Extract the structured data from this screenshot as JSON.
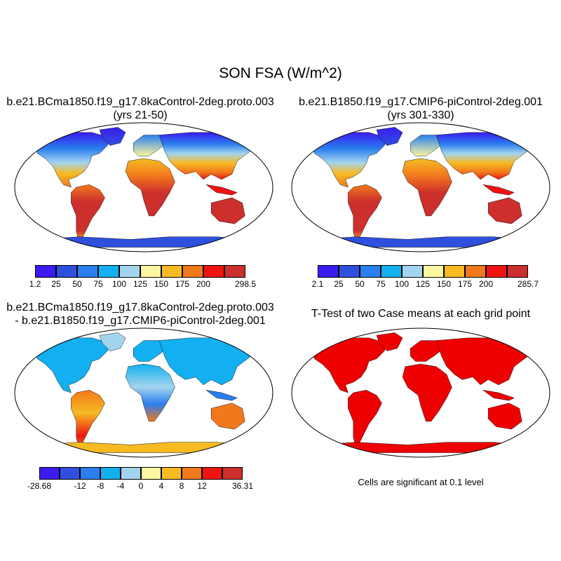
{
  "figure": {
    "title": "SON FSA (W/m^2)"
  },
  "colors": {
    "abs_scale": [
      "#3a1cf0",
      "#2f4fde",
      "#2a7fee",
      "#12b0f0",
      "#a3d4ee",
      "#fbf6a0",
      "#f6bb23",
      "#f2781c",
      "#ee1411",
      "#cc2f2c"
    ],
    "diff_scale": [
      "#3a1cf0",
      "#2f4fde",
      "#2a7fee",
      "#12b0f0",
      "#a3d4ee",
      "#fbf6a0",
      "#f6bb23",
      "#f2781c",
      "#ee1411",
      "#cc2f2c"
    ],
    "significance": "#ee0000",
    "coast": "#000000"
  },
  "panels": {
    "top_left": {
      "title_line1": "b.e21.BCma1850.f19_g17.8kaControl-2deg.proto.003",
      "title_line2": "(yrs 21-50)",
      "colorbar_labels": [
        "1.2",
        "25",
        "50",
        "75",
        "100",
        "125",
        "150",
        "175",
        "200",
        "298.5"
      ]
    },
    "top_right": {
      "title_line1": "b.e21.B1850.f19_g17.CMIP6-piControl-2deg.001",
      "title_line2": "(yrs 301-330)",
      "colorbar_labels": [
        "2.1",
        "25",
        "50",
        "75",
        "100",
        "125",
        "150",
        "175",
        "200",
        "285.7"
      ]
    },
    "bottom_left": {
      "title_line1": "b.e21.BCma1850.f19_g17.8kaControl-2deg.proto.003",
      "title_line2": "- b.e21.B1850.f19_g17.CMIP6-piControl-2deg.001",
      "colorbar_labels": [
        "-28.68",
        "-12",
        "-8",
        "-4",
        "0",
        "4",
        "8",
        "12",
        "36.31"
      ]
    },
    "bottom_right": {
      "title_line1": "T-Test of two Case means at each grid point",
      "note": "Cells are significant at 0.1 level"
    }
  }
}
